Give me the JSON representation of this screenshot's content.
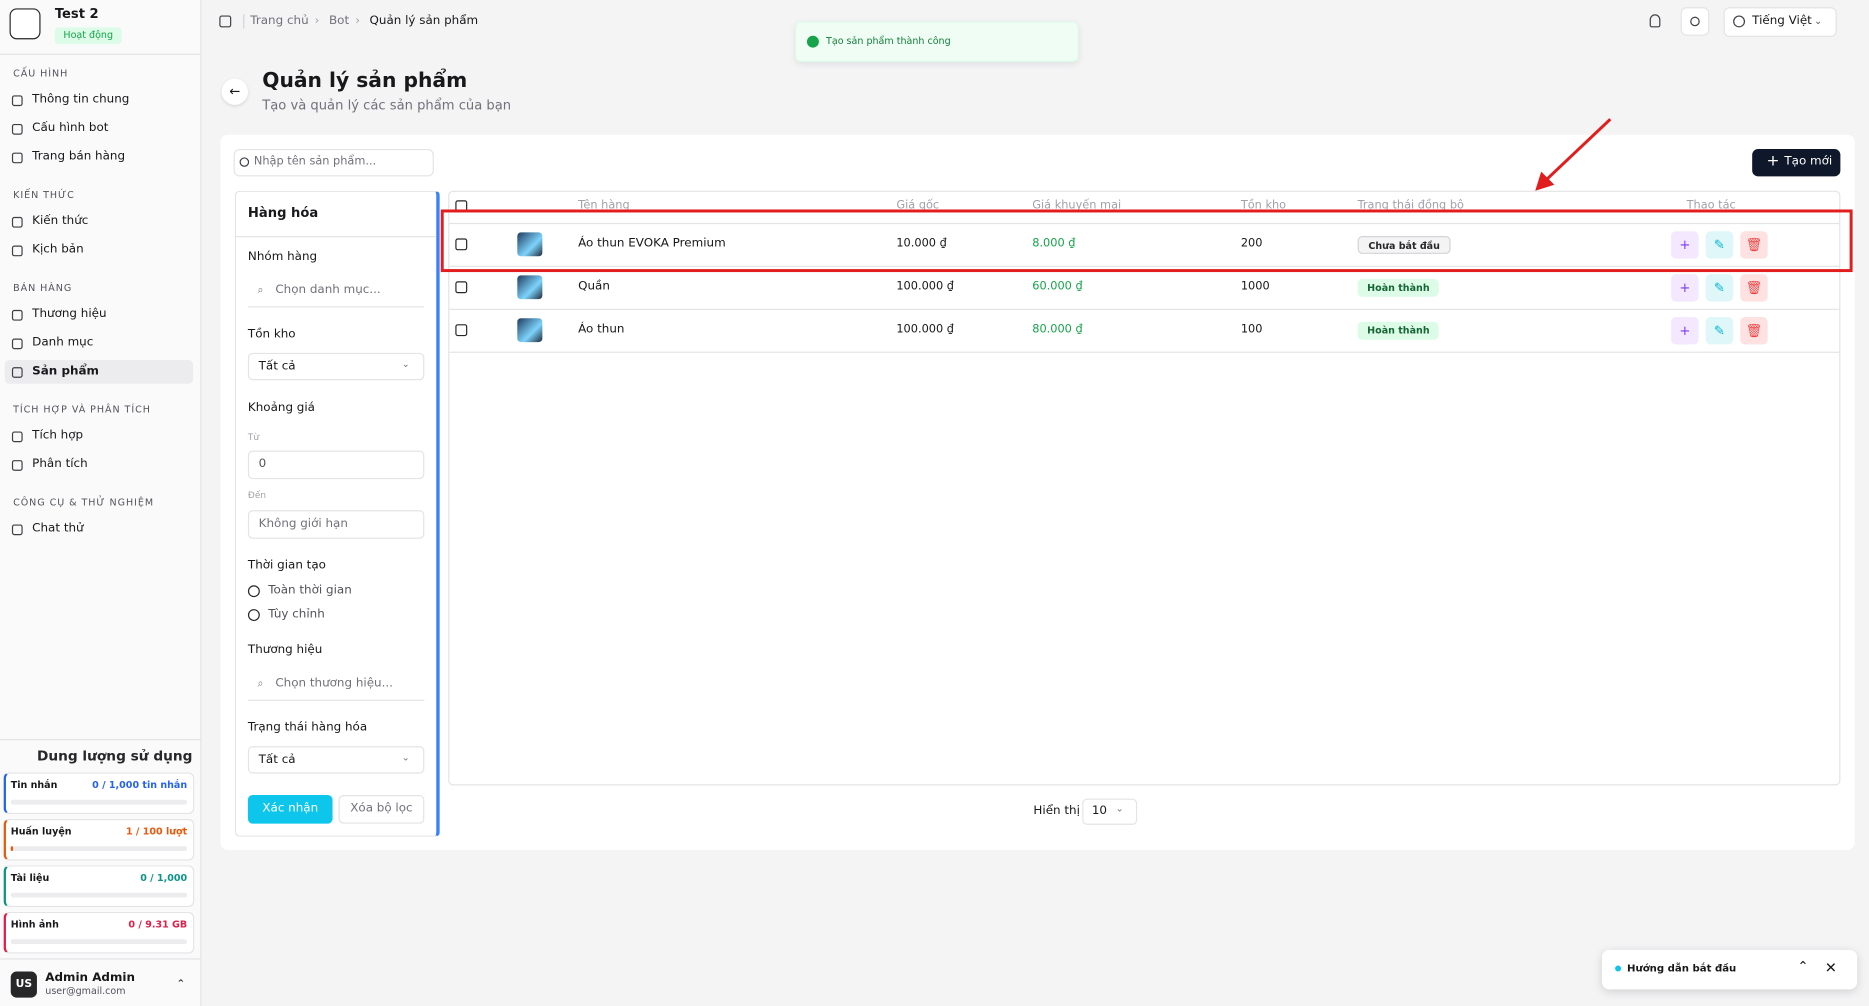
{
  "sidebar": {
    "bot_name": "Test 2",
    "bot_status": "Hoạt động",
    "sections": [
      {
        "title": "CẤU HÌNH",
        "items": [
          "Thông tin chung",
          "Cấu hình bot",
          "Trang bán hàng"
        ]
      },
      {
        "title": "KIẾN THỨC",
        "items": [
          "Kiến thức",
          "Kịch bản"
        ]
      },
      {
        "title": "BÁN HÀNG",
        "items": [
          "Thương hiệu",
          "Danh mục",
          "Sản phẩm"
        ]
      },
      {
        "title": "TÍCH HỢP VÀ PHÂN TÍCH",
        "items": [
          "Tích hợp",
          "Phân tích"
        ]
      },
      {
        "title": "CÔNG CỤ & THỬ NGHIỆM",
        "items": [
          "Chat thử"
        ]
      }
    ],
    "usage": {
      "title": "Dung lượng sử dụng",
      "items": [
        {
          "label": "Tin nhắn",
          "value": "0 / 1,000 tin nhắn"
        },
        {
          "label": "Huấn luyện",
          "value": "1 / 100 lượt"
        },
        {
          "label": "Tài liệu",
          "value": "0 / 1,000"
        },
        {
          "label": "Hình ảnh",
          "value": "0 / 9.31 GB"
        }
      ]
    },
    "user": {
      "initials": "US",
      "name": "Admin Admin",
      "email": "user@gmail.com"
    }
  },
  "header": {
    "breadcrumb": [
      "Trang chủ",
      "Bot",
      "Quản lý sản phẩm"
    ],
    "language": "Tiếng Việt"
  },
  "toast": "Tạo sản phẩm thành công",
  "page": {
    "title": "Quản lý sản phẩm",
    "subtitle": "Tạo và quản lý các sản phẩm của bạn",
    "search_placeholder": "Nhập tên sản phẩm...",
    "create_button": "Tạo mới"
  },
  "filters": {
    "title": "Hàng hóa",
    "group_label": "Nhóm hàng",
    "group_placeholder": "Chọn danh mục...",
    "stock_label": "Tồn kho",
    "stock_value": "Tất cả",
    "price_label": "Khoảng giá",
    "from_label": "Từ",
    "from_value": "0",
    "to_label": "Đến",
    "to_placeholder": "Không giới hạn",
    "time_label": "Thời gian tạo",
    "time_options": [
      "Toàn thời gian",
      "Tùy chỉnh"
    ],
    "brand_label": "Thương hiệu",
    "brand_placeholder": "Chọn thương hiệu...",
    "status_label": "Trạng thái hàng hóa",
    "status_value": "Tất cả",
    "confirm": "Xác nhận",
    "clear": "Xóa bộ lọc"
  },
  "table": {
    "columns": [
      "Tên hàng",
      "Giá gốc",
      "Giá khuyến mại",
      "Tồn kho",
      "Trạng thái đồng bộ",
      "Thao tác"
    ],
    "rows": [
      [
        "Áo thun EVOKA Premium",
        "10.000 ₫",
        "8.000 ₫",
        "200",
        "Chưa bắt đầu"
      ],
      [
        "Quần",
        "100.000 ₫",
        "60.000 ₫",
        "1000",
        "Hoàn thành"
      ],
      [
        "Áo thun",
        "100.000 ₫",
        "80.000 ₫",
        "100",
        "Hoàn thành"
      ]
    ]
  },
  "pagination": {
    "label": "Hiển thị",
    "page_size": "10"
  },
  "guide": "Hướng dẫn bắt đầu"
}
